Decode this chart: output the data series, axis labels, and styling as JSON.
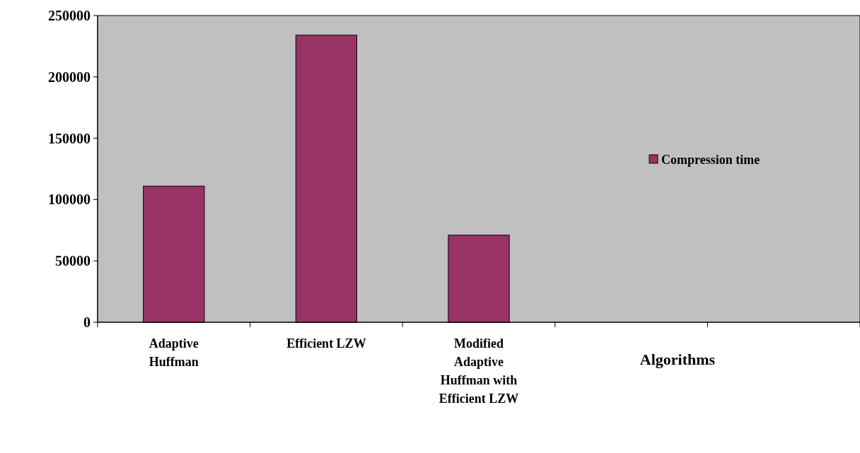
{
  "chart_data": {
    "type": "bar",
    "xlabel": "Algorithms",
    "categories": [
      "Adaptive Huffman",
      "Efficient LZW",
      "Modified Adaptive Huffman with Efficient LZW",
      null,
      null
    ],
    "series": [
      {
        "name": "Compression time",
        "color": "#993366",
        "values": [
          111000,
          234000,
          71000,
          null,
          null
        ]
      }
    ],
    "ylim": [
      0,
      250000
    ],
    "yticks": [
      0,
      50000,
      100000,
      150000,
      200000,
      250000
    ],
    "legend": "right"
  }
}
